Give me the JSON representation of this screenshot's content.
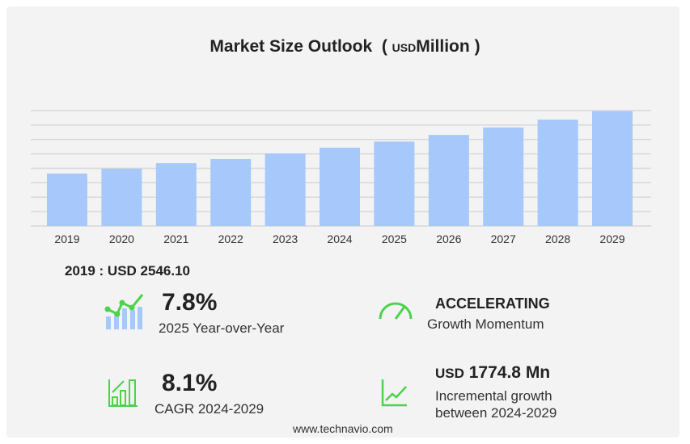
{
  "title": {
    "main": "Market Size Outlook",
    "paren_open": "(",
    "unit": "USD",
    "unit2": "Million",
    "paren_close": ")"
  },
  "base_label": "2019 : USD  2546.10",
  "stats": [
    {
      "value": "7.8%",
      "label": "2025 Year-over-Year",
      "icon": "trend-bars-icon"
    },
    {
      "value": "ACCELERATING",
      "label": "Growth Momentum",
      "icon": "speedometer-icon"
    },
    {
      "value": "8.1%",
      "label": "CAGR 2024-2029",
      "icon": "growth-chart-icon"
    },
    {
      "value_prefix": "USD",
      "value": "1774.8 Mn",
      "label": "Incremental growth",
      "label2": "between 2024-2029",
      "icon": "line-chart-icon"
    }
  ],
  "footer": "www.technavio.com",
  "colors": {
    "bar": "#a6c8fb",
    "icon": "#4cd24c",
    "grid": "#d8d8d8"
  },
  "chart_data": {
    "type": "bar",
    "title": "Market Size Outlook (USD Million)",
    "categories": [
      "2019",
      "2020",
      "2021",
      "2022",
      "2023",
      "2024",
      "2025",
      "2026",
      "2027",
      "2028",
      "2029"
    ],
    "values": [
      2546.1,
      2780,
      3050,
      3250,
      3520,
      3800,
      4096,
      4420,
      4780,
      5160,
      5575
    ],
    "xlabel": "",
    "ylabel": "USD Million",
    "ylim": [
      0,
      5600
    ],
    "grid": true
  }
}
